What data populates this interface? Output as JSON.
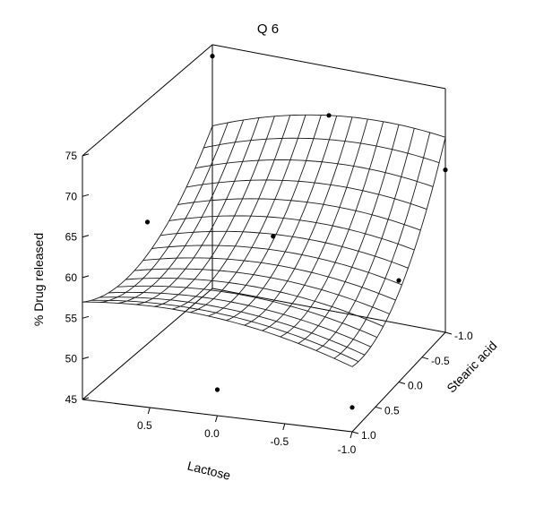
{
  "chart_data": {
    "type": "surface",
    "title": "Q 6",
    "xlabel": "Lactose",
    "ylabel": "Stearic acid",
    "zlabel": "% Drug released",
    "x_range": [
      -1.0,
      1.0
    ],
    "y_range": [
      -1.0,
      1.0
    ],
    "z_range": [
      45,
      75
    ],
    "x_ticks": [
      "0.5",
      "0.0",
      "-0.5",
      "-1.0"
    ],
    "x_tick_values": [
      0.5,
      0.0,
      -0.5,
      -1.0
    ],
    "y_ticks": [
      "-1.0",
      "-0.5",
      "0.0",
      "0.5",
      "1.0"
    ],
    "y_tick_values": [
      -1.0,
      -0.5,
      0.0,
      0.5,
      1.0
    ],
    "z_ticks": [
      "45",
      "50",
      "55",
      "60",
      "65",
      "70",
      "75"
    ],
    "z_tick_values": [
      45,
      50,
      55,
      60,
      65,
      70,
      75
    ],
    "surface": {
      "grid_divisions": 15,
      "model": "z = 58 - 6*y + 2*x*y + 5*y^2 - 2*x^2"
    },
    "points": [
      {
        "x": 1.0,
        "y": -1.0,
        "z": 73.6
      },
      {
        "x": 0.0,
        "y": -1.0,
        "z": 69.0
      },
      {
        "x": -1.0,
        "y": -1.0,
        "z": 65.0
      },
      {
        "x": 1.0,
        "y": 0.0,
        "z": 60.0
      },
      {
        "x": 0.0,
        "y": 0.0,
        "z": 60.6
      },
      {
        "x": -1.0,
        "y": 0.0,
        "z": 57.5
      },
      {
        "x": 0.0,
        "y": 1.0,
        "z": 48.2
      },
      {
        "x": -1.0,
        "y": 1.0,
        "z": 48.0
      }
    ]
  }
}
